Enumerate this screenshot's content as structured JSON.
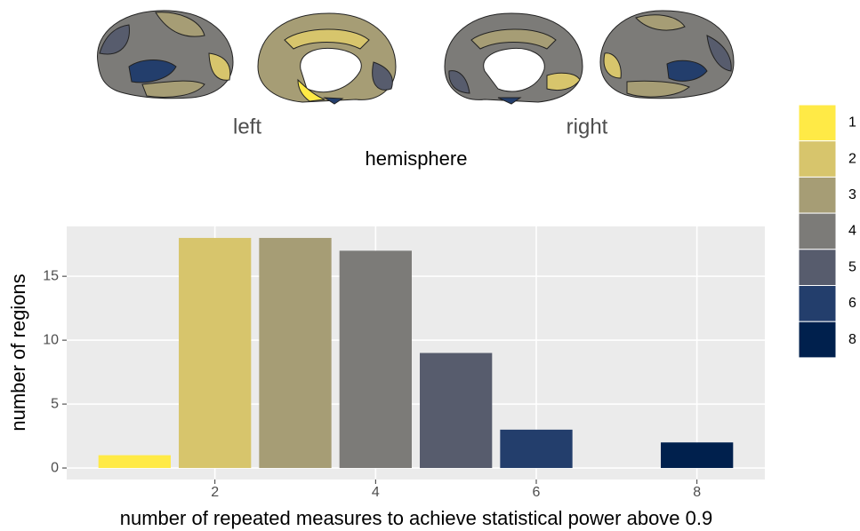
{
  "brain_panel": {
    "labels": [
      "left",
      "right"
    ],
    "axis_label": "hemisphere"
  },
  "chart_data": {
    "type": "bar",
    "x": [
      1,
      2,
      3,
      4,
      5,
      6,
      8
    ],
    "values": [
      1,
      18,
      18,
      17,
      9,
      3,
      2
    ],
    "colors": [
      "#FFEA46",
      "#D7C56C",
      "#A69D75",
      "#7C7B78",
      "#575C6D",
      "#233E6C",
      "#00204D"
    ],
    "xlabel": "number of repeated measures to achieve statistical power above 0.9",
    "ylabel": "number of regions",
    "xlim": [
      0.155,
      8.845
    ],
    "ylim": [
      -0.9,
      18.9
    ],
    "xticks": [
      2,
      4,
      6,
      8
    ],
    "yticks": [
      0,
      5,
      10,
      15
    ],
    "grid": true,
    "legend": "right"
  }
}
